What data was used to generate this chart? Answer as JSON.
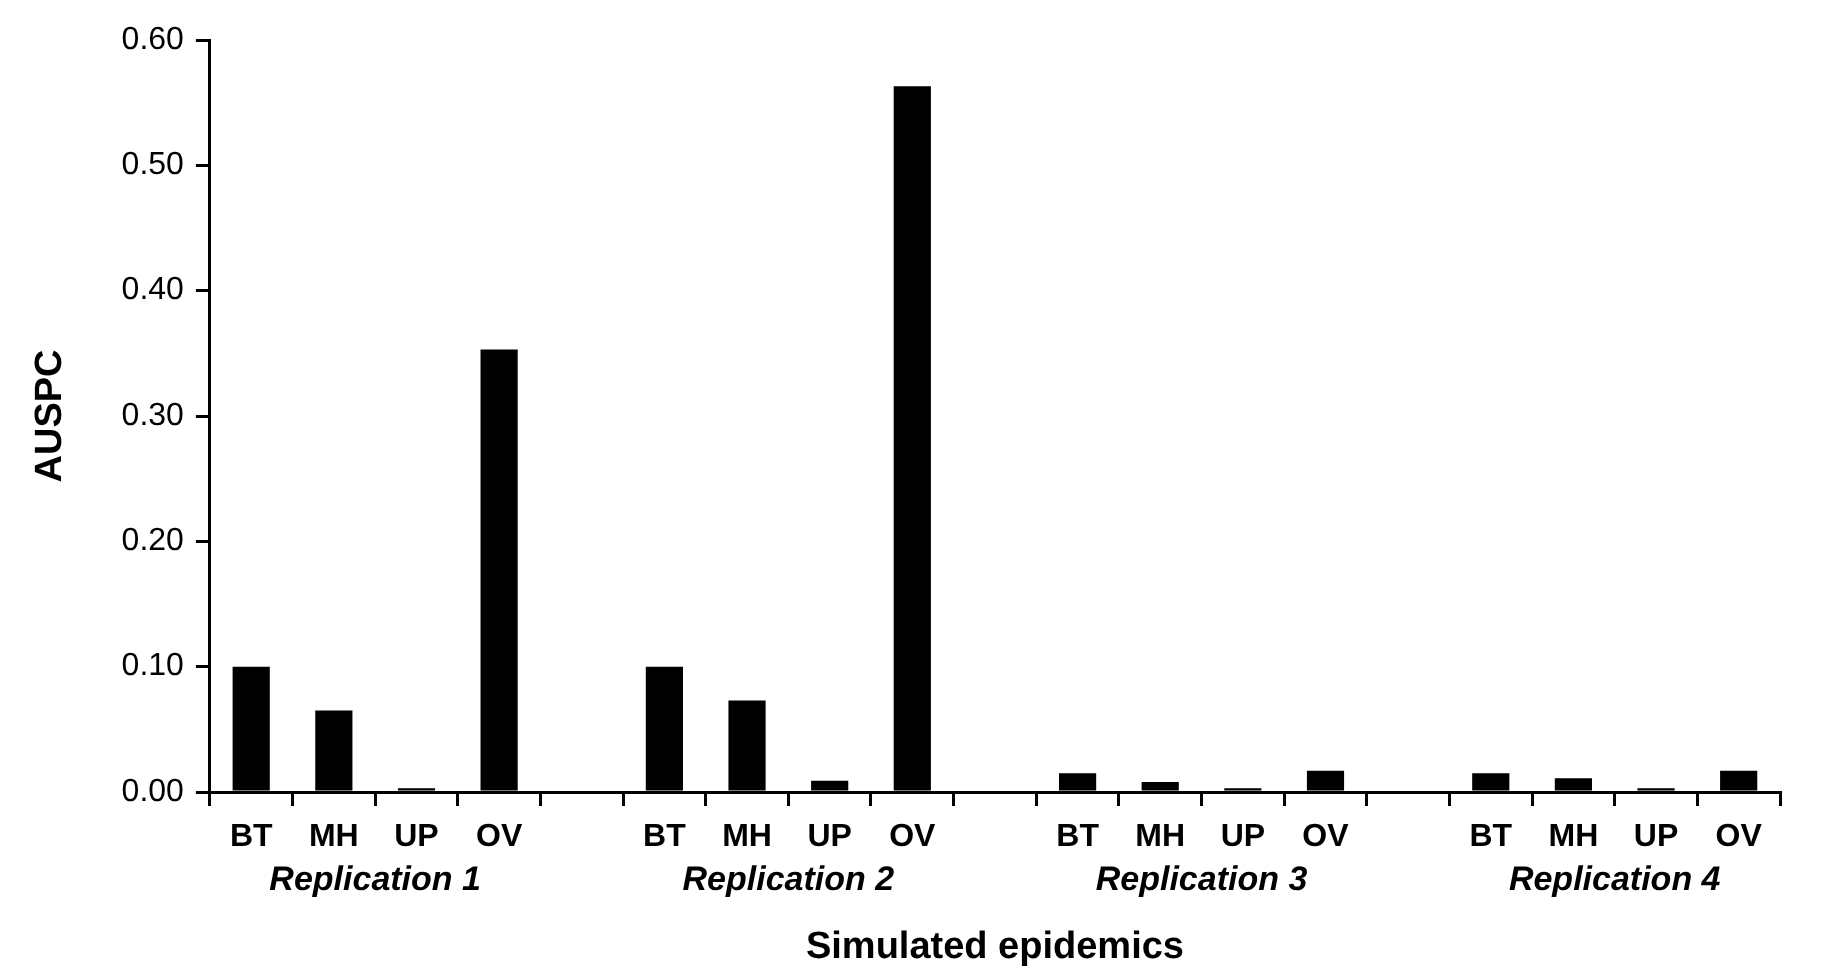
{
  "chart_data": {
    "type": "bar",
    "xlabel": "Simulated epidemics",
    "ylabel": "AUSPC",
    "categories": [
      "BT",
      "MH",
      "UP",
      "OV",
      null,
      "BT",
      "MH",
      "UP",
      "OV",
      null,
      "BT",
      "MH",
      "UP",
      "OV",
      null,
      "BT",
      "MH",
      "UP",
      "OV"
    ],
    "values": [
      0.1,
      0.065,
      0.003,
      0.353,
      null,
      0.1,
      0.073,
      0.009,
      0.563,
      null,
      0.015,
      0.008,
      0.003,
      0.017,
      null,
      0.015,
      0.011,
      0.003,
      0.017
    ],
    "color": "#000000",
    "ylim": [
      0,
      0.6
    ],
    "yticks": [
      {
        "value": 0,
        "label": "0.00"
      },
      {
        "value": 0.1,
        "label": "0.10"
      },
      {
        "value": 0.2,
        "label": "0.20"
      },
      {
        "value": 0.3,
        "label": "0.30"
      },
      {
        "value": 0.4,
        "label": "0.40"
      },
      {
        "value": 0.5,
        "label": "0.50"
      },
      {
        "value": 0.6,
        "label": "0.60"
      }
    ],
    "annotations": [
      "Replication 1",
      "Replication 2",
      "Replication 3",
      "Replication 4"
    ],
    "grid": false,
    "legend": false
  }
}
